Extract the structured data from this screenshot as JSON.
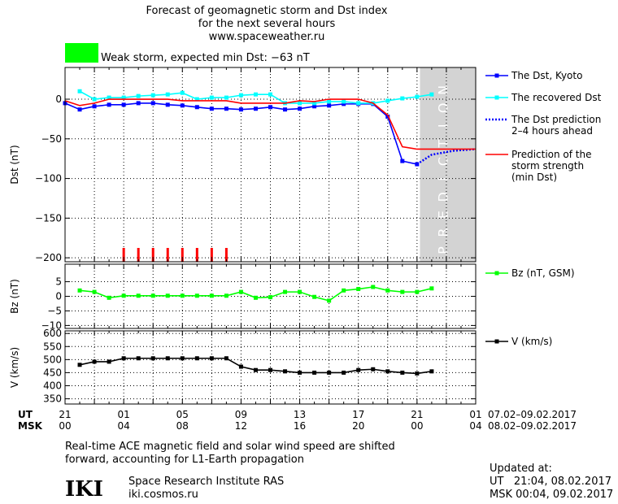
{
  "header": {
    "title_line1": "Forecast of geomagnetic storm and Dst index",
    "title_line2": "for the next several hours",
    "site": "www.spaceweather.ru",
    "storm_color": "#00ff00",
    "storm_text": "Weak storm, expected min Dst: −63 nT"
  },
  "chart_data": [
    {
      "type": "line",
      "panel": "dst",
      "ylabel": "Dst (nT)",
      "ylim": [
        -205,
        40
      ],
      "yticks": [
        0,
        -50,
        -100,
        -150,
        -200
      ],
      "ytick_labels": [
        "0",
        "−50",
        "−100",
        "−150",
        "−200"
      ],
      "xlim": [
        0,
        28
      ],
      "prediction_band": {
        "from": 24.2,
        "to": 28,
        "label": "PREDICTION",
        "color": "#d3d3d3"
      },
      "storm_marks": {
        "x": [
          4,
          5,
          6,
          7,
          8,
          9,
          10,
          11
        ],
        "color": "#ff0000"
      },
      "series": [
        {
          "name": "The Dst, Kyoto",
          "color": "#0000ff",
          "style": "line-square",
          "x": [
            0,
            1,
            2,
            3,
            4,
            5,
            6,
            7,
            8,
            9,
            10,
            11,
            12,
            13,
            14,
            15,
            16,
            17,
            18,
            19,
            20,
            21,
            22,
            23,
            24
          ],
          "y": [
            -5,
            -13,
            -9,
            -7,
            -7,
            -5,
            -5,
            -7,
            -8,
            -10,
            -12,
            -12,
            -13,
            -12,
            -10,
            -13,
            -12,
            -9,
            -8,
            -6,
            -6,
            -6,
            -22,
            -78,
            -82
          ]
        },
        {
          "name": "The recovered Dst",
          "color": "#00ffff",
          "style": "line-square",
          "x": [
            1,
            2,
            3,
            4,
            5,
            6,
            7,
            8,
            9,
            10,
            11,
            12,
            13,
            14,
            15,
            16,
            17,
            18,
            19,
            20,
            21,
            22,
            23,
            24,
            25
          ],
          "y": [
            10,
            0,
            2,
            2,
            4,
            5,
            6,
            8,
            0,
            2,
            2,
            5,
            6,
            6,
            -5,
            -5,
            -5,
            -3,
            -3,
            -5,
            -5,
            -2,
            1,
            3,
            6
          ]
        },
        {
          "name": "The Dst prediction\n2–4 hours ahead",
          "color": "#0000ff",
          "style": "dotted",
          "x": [
            24,
            25,
            26.5,
            28
          ],
          "y": [
            -82,
            -70,
            -65,
            -63
          ]
        },
        {
          "name": "Prediction of the\nstorm strength\n(min Dst)",
          "color": "#ff0000",
          "style": "line",
          "x": [
            0,
            1,
            2,
            3,
            4,
            5,
            6,
            7,
            8,
            9,
            10,
            11,
            12,
            13,
            14,
            15,
            16,
            17,
            18,
            19,
            20,
            21,
            22,
            23,
            24,
            25,
            26,
            27,
            28
          ],
          "y": [
            -2,
            -8,
            -5,
            0,
            0,
            0,
            0,
            0,
            -2,
            -2,
            -2,
            -2,
            -5,
            -5,
            -5,
            -5,
            -2,
            -3,
            0,
            0,
            0,
            -5,
            -20,
            -60,
            -63,
            -63,
            -63,
            -63,
            -63
          ]
        }
      ]
    },
    {
      "type": "line",
      "panel": "bz",
      "ylabel": "Bz (nT)",
      "ylim": [
        -11,
        11
      ],
      "yticks": [
        5,
        0,
        -5,
        -10
      ],
      "ytick_labels": [
        "5",
        "0",
        "−5",
        "−10"
      ],
      "xlim": [
        0,
        28
      ],
      "series": [
        {
          "name": "Bz (nT, GSM)",
          "color": "#00ff00",
          "style": "line-square",
          "x": [
            1,
            2,
            3,
            4,
            5,
            6,
            7,
            8,
            9,
            10,
            11,
            12,
            13,
            14,
            15,
            16,
            17,
            18,
            19,
            20,
            21,
            22,
            23,
            24,
            25
          ],
          "y": [
            2,
            1.5,
            -0.5,
            0.2,
            0.2,
            0.2,
            0.2,
            0.2,
            0.2,
            0.2,
            0.2,
            1.5,
            -0.5,
            -0.3,
            1.5,
            1.5,
            -0.2,
            -1.5,
            2,
            2.5,
            3.2,
            2,
            1.5,
            1.5,
            2.7
          ]
        }
      ]
    },
    {
      "type": "line",
      "panel": "v",
      "ylabel": "V (km/s)",
      "ylim": [
        330,
        610
      ],
      "yticks": [
        600,
        550,
        500,
        450,
        400,
        350
      ],
      "ytick_labels": [
        "600",
        "550",
        "500",
        "450",
        "400",
        "350"
      ],
      "xlim": [
        0,
        28
      ],
      "series": [
        {
          "name": "V (km/s)",
          "color": "#000000",
          "style": "line-square",
          "x": [
            1,
            2,
            3,
            4,
            5,
            6,
            7,
            8,
            9,
            10,
            11,
            12,
            13,
            14,
            15,
            16,
            17,
            18,
            19,
            20,
            21,
            22,
            23,
            24,
            25
          ],
          "y": [
            480,
            492,
            492,
            505,
            505,
            505,
            505,
            505,
            505,
            505,
            505,
            473,
            460,
            460,
            455,
            450,
            450,
            450,
            450,
            460,
            463,
            455,
            450,
            447,
            455
          ]
        }
      ]
    }
  ],
  "time_axis": {
    "ut_label": "UT",
    "msk_label": "MSK",
    "ut_ticks": [
      "21",
      "01",
      "05",
      "09",
      "13",
      "17",
      "21",
      "01"
    ],
    "msk_ticks": [
      "00",
      "04",
      "08",
      "12",
      "16",
      "20",
      "00",
      "04"
    ],
    "ut_range": "07.02–09.02.2017",
    "msk_range": "08.02–09.02.2017"
  },
  "footer": {
    "note_line1": "Real-time ACE magnetic field and solar wind speed are shifted",
    "note_line2": "forward, accounting for L1-Earth propagation",
    "logo": "IKI",
    "institute": "Space Research Institute RAS",
    "url": "iki.cosmos.ru",
    "updated_label": "Updated at:",
    "updated_ut": "UT   21:04, 08.02.2017",
    "updated_msk": "MSK 00:04, 09.02.2017"
  }
}
